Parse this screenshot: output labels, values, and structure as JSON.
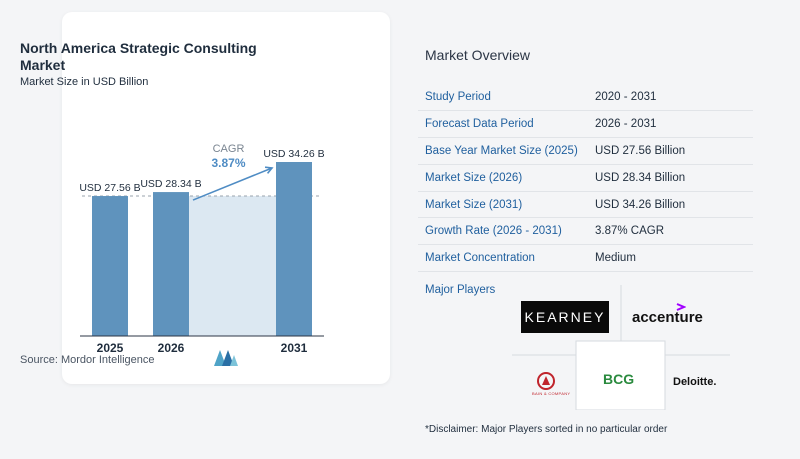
{
  "chart_data": {
    "type": "bar",
    "title": "North America Strategic Consulting Market",
    "subtitle": "Market Size in USD Billion",
    "categories": [
      "2025",
      "2026",
      "2031"
    ],
    "values": [
      27.56,
      28.34,
      34.26
    ],
    "value_labels": [
      "USD 27.56 B",
      "USD 28.34 B",
      "USD 34.26 B"
    ],
    "cagr_label": "CAGR",
    "cagr_value": "3.87%",
    "source": "Source:  Mordor Intelligence",
    "colors": {
      "bar": "#5f93bd",
      "band": "#dce8f2",
      "arrow": "#4f8cc4",
      "cagr": "#4f8cc4"
    }
  },
  "overview": {
    "title": "Market Overview",
    "rows": [
      {
        "label": "Study Period",
        "value": "2020 - 2031"
      },
      {
        "label": "Forecast Data Period",
        "value": "2026 - 2031"
      },
      {
        "label": "Base Year Market Size (2025)",
        "value": "USD 27.56 Billion"
      },
      {
        "label": "Market Size (2026)",
        "value": "USD 28.34 Billion"
      },
      {
        "label": "Market Size (2031)",
        "value": "USD 34.26 Billion"
      },
      {
        "label": "Growth Rate (2026 - 2031)",
        "value": "3.87% CAGR"
      },
      {
        "label": "Market Concentration",
        "value": "Medium"
      }
    ]
  },
  "players": {
    "title": "Major Players",
    "kearney": "KEARNEY",
    "accenture": "accenture",
    "bcg": "BCG",
    "deloitte": "Deloitte.",
    "bain": "BAIN & COMPANY"
  },
  "disclaimer": "*Disclaimer: Major Players sorted in no particular order"
}
